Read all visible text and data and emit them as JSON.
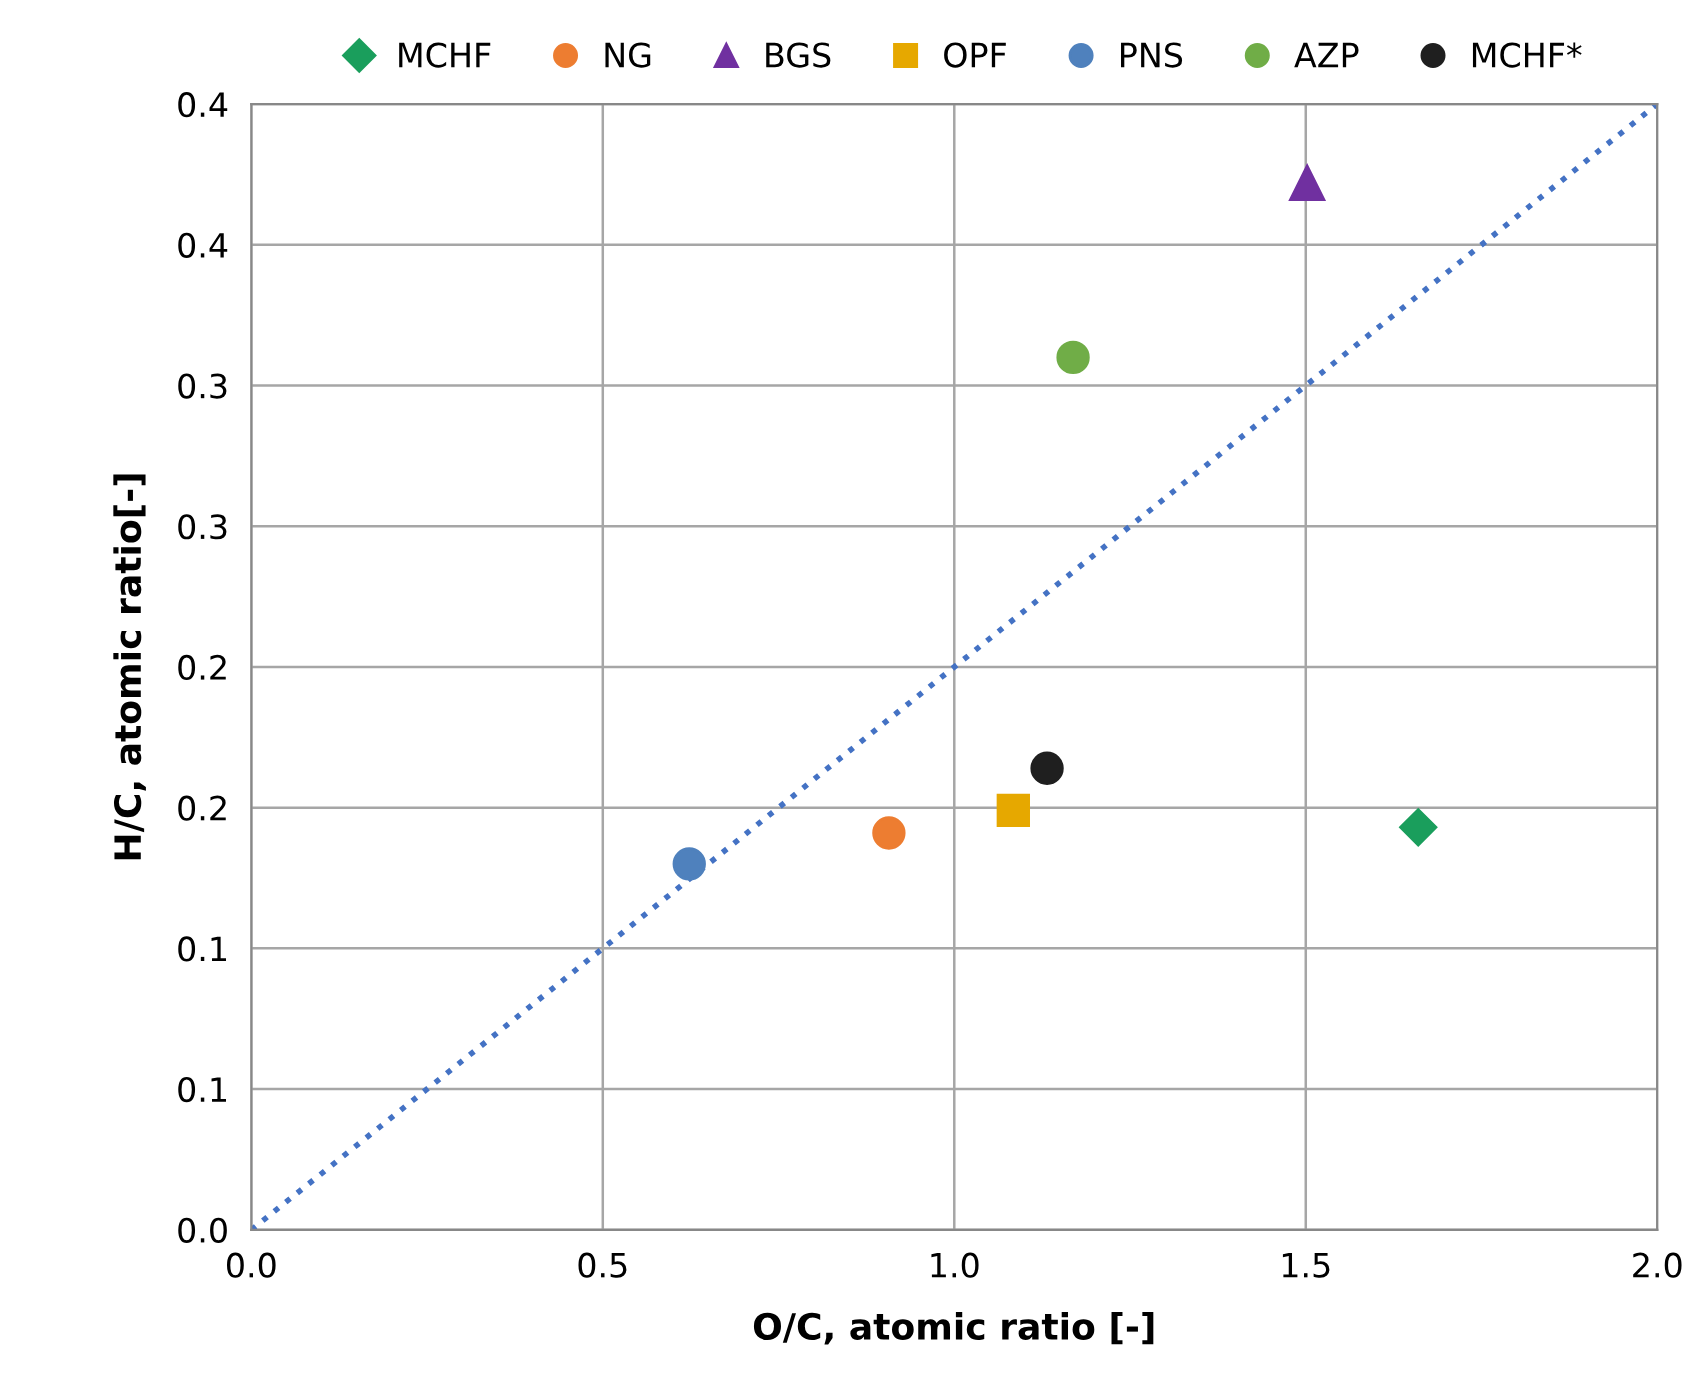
{
  "chart_data": {
    "type": "scatter",
    "xlabel": "O/C, atomic ratio [-]",
    "ylabel": "H/C, atomic ratio[-]",
    "xlim": [
      0,
      2.0
    ],
    "ylim": [
      0,
      0.4
    ],
    "xticks": [
      {
        "value": 0,
        "label": "0.0"
      },
      0.5,
      {
        "value": 1,
        "label": "1.0"
      },
      1.5,
      {
        "value": 2,
        "label": "2.0"
      }
    ],
    "yticks": [
      {
        "value": 0,
        "label": "0.0"
      },
      {
        "value": 0.05,
        "label": "0.1"
      },
      0.1,
      {
        "value": 0.15,
        "label": "0.2"
      },
      0.2,
      {
        "value": 0.25,
        "label": "0.3"
      },
      0.3,
      {
        "value": 0.35,
        "label": "0.4"
      },
      0.4
    ],
    "grid": true,
    "legend": "top",
    "series": [
      {
        "name": "MCHF",
        "color": "#1a9e5c",
        "marker": "diamond",
        "x": [
          1.66
        ],
        "values": [
          0.143
        ]
      },
      {
        "name": "NG",
        "color": "#ed7d31",
        "marker": "circle",
        "x": [
          0.907
        ],
        "values": [
          0.141
        ]
      },
      {
        "name": "BGS",
        "color": "#7030a0",
        "marker": "triangle",
        "x": [
          1.502
        ],
        "values": [
          0.372
        ]
      },
      {
        "name": "OPF",
        "color": "#e6a800",
        "marker": "square",
        "x": [
          1.084
        ],
        "values": [
          0.149
        ]
      },
      {
        "name": "PNS",
        "color": "#4f81bd",
        "marker": "circle",
        "x": [
          0.623
        ],
        "values": [
          0.13
        ]
      },
      {
        "name": "AZP",
        "color": "#70ad47",
        "marker": "circle",
        "x": [
          1.169
        ],
        "values": [
          0.31
        ]
      },
      {
        "name": "MCHF*",
        "color": "#1f1f1f",
        "marker": "circle",
        "x": [
          1.132
        ],
        "values": [
          0.164
        ]
      },
      {
        "type": "line",
        "color": "#4472c4",
        "line_style": "dotted",
        "marker": "none",
        "x": [
          0,
          2.0
        ],
        "values": [
          0,
          0.4
        ]
      }
    ]
  }
}
